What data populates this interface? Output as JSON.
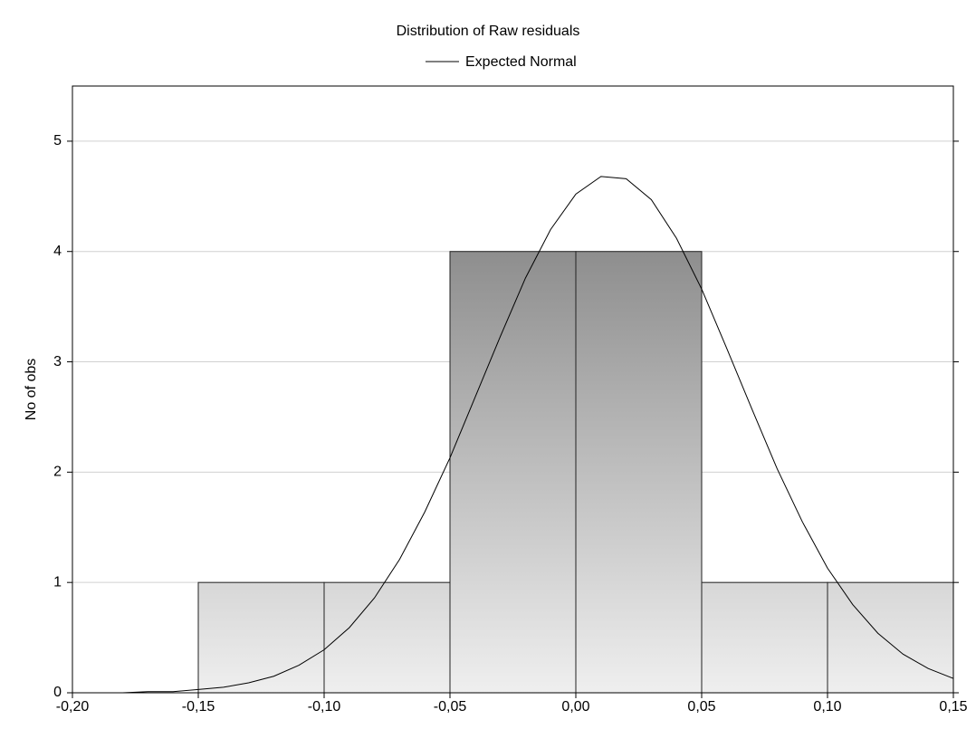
{
  "chart_data": {
    "type": "histogram",
    "title": "Distribution of Raw residuals",
    "ylabel": "No of obs",
    "bins": [
      -0.2,
      -0.15,
      -0.1,
      -0.05,
      0.0,
      0.05,
      0.1,
      0.15
    ],
    "counts": [
      0,
      1,
      1,
      4,
      4,
      1,
      1
    ],
    "curve": {
      "name": "Expected Normal",
      "color": "#000000",
      "x": [
        -0.2,
        -0.19,
        -0.18,
        -0.17,
        -0.16,
        -0.15,
        -0.14,
        -0.13,
        -0.12,
        -0.11,
        -0.1,
        -0.09,
        -0.08,
        -0.07,
        -0.06,
        -0.05,
        -0.04,
        -0.03,
        -0.02,
        -0.01,
        0.0,
        0.01,
        0.02,
        0.03,
        0.04,
        0.05,
        0.06,
        0.07,
        0.08,
        0.09,
        0.1,
        0.11,
        0.12,
        0.13,
        0.14,
        0.15
      ],
      "values": [
        0.0,
        0.0,
        0.0,
        0.01,
        0.01,
        0.03,
        0.05,
        0.09,
        0.15,
        0.25,
        0.39,
        0.59,
        0.86,
        1.21,
        1.64,
        2.13,
        2.68,
        3.23,
        3.76,
        4.2,
        4.52,
        4.68,
        4.66,
        4.47,
        4.12,
        3.66,
        3.12,
        2.57,
        2.03,
        1.55,
        1.13,
        0.8,
        0.54,
        0.35,
        0.22,
        0.13
      ]
    },
    "xlim": [
      -0.2,
      0.15
    ],
    "xticks": [
      {
        "value": -0.2,
        "label": "-0,20"
      },
      {
        "value": -0.15,
        "label": "-0,15"
      },
      {
        "value": -0.1,
        "label": "-0,10"
      },
      {
        "value": -0.05,
        "label": "-0,05"
      },
      {
        "value": 0.0,
        "label": "0,00"
      },
      {
        "value": 0.05,
        "label": "0,05"
      },
      {
        "value": 0.1,
        "label": "0,10"
      },
      {
        "value": 0.15,
        "label": "0,15"
      }
    ],
    "ylim": [
      0,
      5.5
    ],
    "yticks": [
      0,
      1,
      2,
      3,
      4,
      5
    ],
    "grid": true
  }
}
